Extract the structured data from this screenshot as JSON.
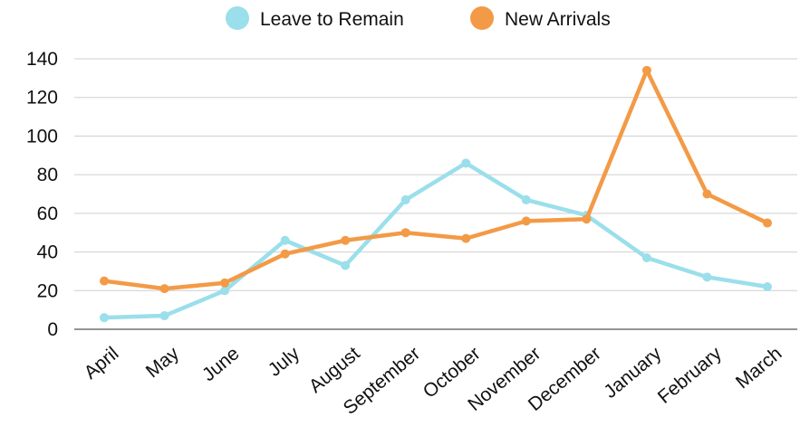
{
  "chart_data": {
    "type": "line",
    "categories": [
      "April",
      "May",
      "June",
      "July",
      "August",
      "September",
      "October",
      "November",
      "December",
      "January",
      "February",
      "March"
    ],
    "series": [
      {
        "name": "Leave to Remain",
        "color": "#9adfeb",
        "values": [
          6,
          7,
          20,
          46,
          33,
          67,
          86,
          67,
          59,
          37,
          27,
          22
        ]
      },
      {
        "name": "New Arrivals",
        "color": "#f39a46",
        "values": [
          25,
          21,
          24,
          39,
          46,
          50,
          47,
          56,
          57,
          134,
          70,
          55
        ]
      }
    ],
    "title": "",
    "xlabel": "",
    "ylabel": "",
    "ylim": [
      0,
      140
    ],
    "yticks": [
      0,
      20,
      40,
      60,
      80,
      100,
      120,
      140
    ],
    "grid": true,
    "legend_position": "top-center"
  }
}
